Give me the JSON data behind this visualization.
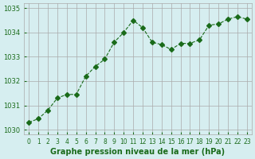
{
  "x": [
    0,
    1,
    2,
    3,
    4,
    5,
    6,
    7,
    8,
    9,
    10,
    11,
    12,
    13,
    14,
    15,
    16,
    17,
    18,
    19,
    20,
    21,
    22,
    23
  ],
  "y": [
    1030.3,
    1030.45,
    1030.8,
    1031.3,
    1031.45,
    1031.45,
    1032.2,
    1032.6,
    1032.9,
    1033.6,
    1034.0,
    1034.5,
    1034.2,
    1033.6,
    1033.5,
    1033.3,
    1033.55,
    1033.55,
    1033.7,
    1034.3,
    1034.35,
    1034.55,
    1034.65,
    1034.55
  ],
  "line_color": "#1a6b1a",
  "marker_color": "#1a6b1a",
  "bg_color": "#d6eef0",
  "grid_color": "#aaaaaa",
  "xlabel": "Graphe pression niveau de la mer (hPa)",
  "xlabel_color": "#1a6b1a",
  "ylabel_ticks": [
    1030,
    1031,
    1032,
    1033,
    1034,
    1035
  ],
  "ylim": [
    1029.8,
    1035.2
  ],
  "xlim": [
    -0.5,
    23.5
  ],
  "xtick_labels": [
    "0",
    "1",
    "2",
    "3",
    "4",
    "5",
    "6",
    "7",
    "8",
    "9",
    "10",
    "11",
    "12",
    "13",
    "14",
    "15",
    "16",
    "17",
    "18",
    "19",
    "20",
    "21",
    "22",
    "23"
  ],
  "line_width": 0.8
}
